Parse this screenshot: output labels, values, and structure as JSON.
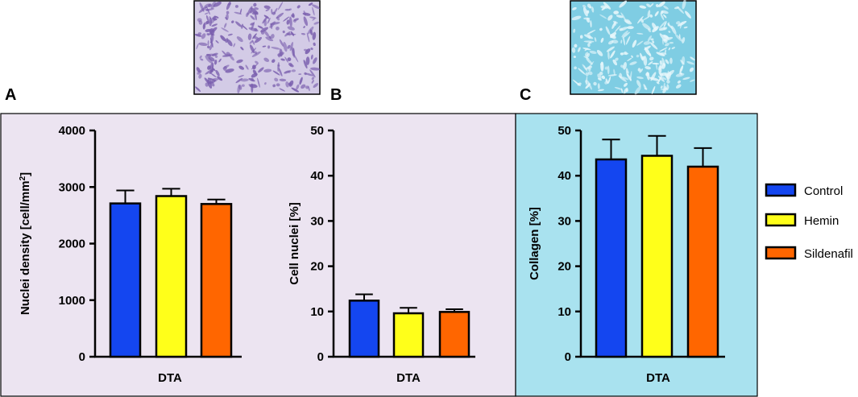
{
  "figure": {
    "panel_a_letter": "A",
    "panel_b_letter": "B",
    "panel_c_letter": "C",
    "panel_ab_background": "#ece4f1",
    "panel_c_background": "#a9e2ef",
    "he_image_color": "#d3cbe6",
    "he_image_accent": "#7a5fae",
    "trichrome_image_color": "#7fcde3",
    "trichrome_image_accent": "#e8f7fb"
  },
  "legend": {
    "entries": [
      "Control",
      "Hemin",
      "Sildenafil"
    ],
    "colors": [
      "#1446f0",
      "#ffff1a",
      "#ff6600"
    ]
  },
  "chart_data": [
    {
      "type": "bar",
      "panel": "A",
      "title": "",
      "ylabel": "Nuclei density [cell/mm",
      "ylabel_sup": "2",
      "ylabel_end": "]",
      "xlabel": "DTA",
      "ylim": [
        0,
        4000
      ],
      "yticks": [
        0,
        1000,
        2000,
        3000,
        4000
      ],
      "series": [
        {
          "name": "Control",
          "value": 2710,
          "error": 230,
          "color": "#1446f0"
        },
        {
          "name": "Hemin",
          "value": 2840,
          "error": 130,
          "color": "#ffff1a"
        },
        {
          "name": "Sildenafil",
          "value": 2700,
          "error": 80,
          "color": "#ff6600"
        }
      ]
    },
    {
      "type": "bar",
      "panel": "B",
      "title": "",
      "ylabel": "Cell nuclei [%]",
      "xlabel": "DTA",
      "ylim": [
        0,
        50
      ],
      "yticks": [
        0,
        10,
        20,
        30,
        40,
        50
      ],
      "series": [
        {
          "name": "Control",
          "value": 12.4,
          "error": 1.4,
          "color": "#1446f0"
        },
        {
          "name": "Hemin",
          "value": 9.6,
          "error": 1.2,
          "color": "#ffff1a"
        },
        {
          "name": "Sildenafil",
          "value": 9.9,
          "error": 0.6,
          "color": "#ff6600"
        }
      ]
    },
    {
      "type": "bar",
      "panel": "C",
      "title": "",
      "ylabel": "Collagen [%]",
      "xlabel": "DTA",
      "ylim": [
        0,
        50
      ],
      "yticks": [
        0,
        10,
        20,
        30,
        40,
        50
      ],
      "series": [
        {
          "name": "Control",
          "value": 43.6,
          "error": 4.4,
          "color": "#1446f0"
        },
        {
          "name": "Hemin",
          "value": 44.4,
          "error": 4.4,
          "color": "#ffff1a"
        },
        {
          "name": "Sildenafil",
          "value": 42.0,
          "error": 4.1,
          "color": "#ff6600"
        }
      ]
    }
  ]
}
